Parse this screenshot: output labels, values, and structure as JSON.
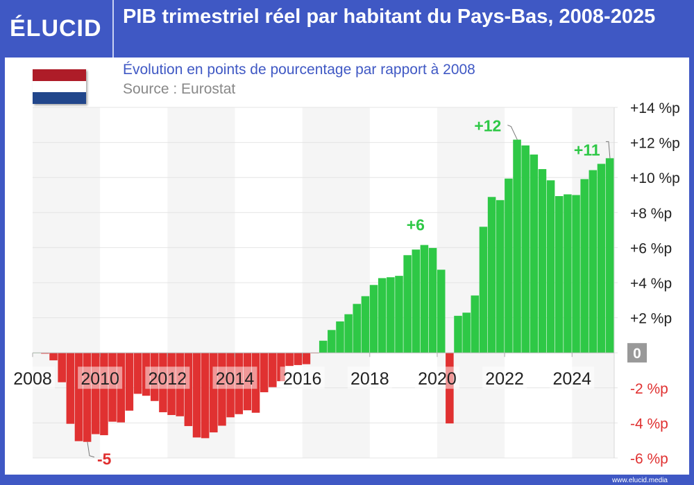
{
  "header": {
    "logo": "ÉLUCID",
    "title": "PIB trimestriel réel par habitant du Pays-Bas, 2008-2025"
  },
  "subtitle": "Évolution en points de pourcentage par rapport à 2008",
  "source": "Source : Eurostat",
  "footer": "www.elucid.media",
  "colors": {
    "brand": "#3f58c4",
    "positive": "#2ec846",
    "negative": "#e03131",
    "flag": [
      "#ae1c28",
      "#ffffff",
      "#21468b"
    ]
  },
  "chart_data": {
    "type": "bar",
    "title": "PIB trimestriel réel par habitant du Pays-Bas, 2008-2025",
    "subtitle": "Évolution en points de pourcentage par rapport à 2008",
    "x_start": "2008-T1",
    "frequency": "quarterly",
    "values": [
      0,
      -0.05,
      -0.43,
      -1.68,
      -4.05,
      -5.04,
      -5.08,
      -4.64,
      -4.7,
      -3.93,
      -3.97,
      -3.3,
      -2.34,
      -2.45,
      -2.75,
      -3.39,
      -3.55,
      -3.62,
      -4.18,
      -4.83,
      -4.87,
      -4.54,
      -4.16,
      -3.68,
      -3.5,
      -3.28,
      -3.42,
      -2.25,
      -1.96,
      -1.62,
      -0.75,
      -0.7,
      -0.65,
      -0.03,
      0.69,
      1.3,
      1.79,
      2.2,
      2.79,
      3.23,
      3.87,
      4.26,
      4.31,
      4.39,
      5.57,
      5.89,
      6.15,
      5.98,
      4.74,
      -4.03,
      2.11,
      2.29,
      3.27,
      7.19,
      8.89,
      8.71,
      9.94,
      12.16,
      11.83,
      11.31,
      10.48,
      9.84,
      8.94,
      9.04,
      9.0,
      9.91,
      10.42,
      10.78,
      11.1
    ],
    "x_tick_labels": [
      "2008",
      "2010",
      "2012",
      "2014",
      "2016",
      "2018",
      "2020",
      "2022",
      "2024"
    ],
    "y_tick_labels": [
      "+14 %p",
      "+12 %p",
      "+10 %p",
      "+8 %p",
      "+6 %p",
      "+4 %p",
      "+2 %p",
      "0",
      "-2 %p",
      "-4 %p",
      "-6 %p"
    ],
    "ylim": [
      -6,
      14
    ],
    "y_axis_position": "right",
    "grid": true,
    "annotations": [
      {
        "index": 6,
        "label": "-5"
      },
      {
        "index": 46,
        "label": "+6"
      },
      {
        "index": 57,
        "label": "+12"
      },
      {
        "index": 68,
        "label": "+11"
      }
    ]
  }
}
